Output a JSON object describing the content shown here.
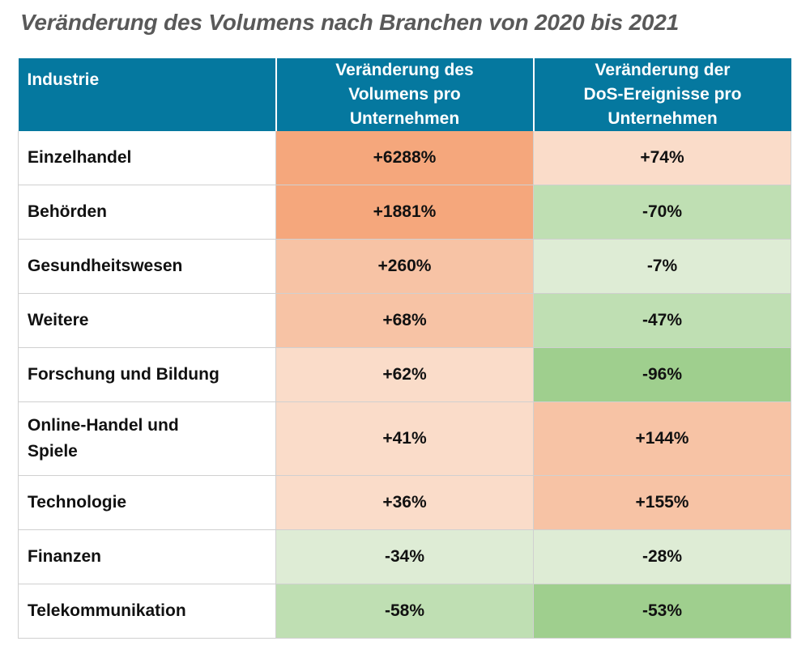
{
  "title": "Veränderung des Volumens nach Branchen von 2020 bis 2021",
  "header": {
    "col1": "Industrie",
    "col2_line1": "Veränderung des",
    "col2_line2": "Volumens pro",
    "col2_line3": "Unternehmen",
    "col3_line1": "Veränderung der",
    "col3_line2": "DoS-Ereignisse pro",
    "col3_line3": "Unternehmen"
  },
  "header_color": "#05789f",
  "colors": {
    "strong_orange": "#f5a77c",
    "medium_orange": "#f7c3a5",
    "light_orange": "#fadcc9",
    "light_green": "#deecd5",
    "medium_green": "#bfdfb3",
    "strong_green": "#9fcf8e"
  },
  "chart_data": {
    "type": "table",
    "title": "Veränderung des Volumens nach Branchen von 2020 bis 2021",
    "columns": [
      "Industrie",
      "Veränderung des Volumens pro Unternehmen",
      "Veränderung der DoS-Ereignisse pro Unternehmen"
    ],
    "rows": [
      {
        "industry": "Einzelhandel",
        "volume": "+6288%",
        "dos": "+74%",
        "volume_color": "#f5a77c",
        "dos_color": "#fadcc9"
      },
      {
        "industry": "Behörden",
        "volume": "+1881%",
        "dos": "-70%",
        "volume_color": "#f5a77c",
        "dos_color": "#bfdfb3"
      },
      {
        "industry": "Gesundheitswesen",
        "volume": "+260%",
        "dos": "-7%",
        "volume_color": "#f7c3a5",
        "dos_color": "#deecd5"
      },
      {
        "industry": "Weitere",
        "volume": "+68%",
        "dos": "-47%",
        "volume_color": "#f7c3a5",
        "dos_color": "#bfdfb3"
      },
      {
        "industry": "Forschung und Bildung",
        "volume": "+62%",
        "dos": "-96%",
        "volume_color": "#fadcc9",
        "dos_color": "#9fcf8e"
      },
      {
        "industry_line1": "Online-Handel und",
        "industry_line2": "Spiele",
        "volume": "+41%",
        "dos": "+144%",
        "volume_color": "#fadcc9",
        "dos_color": "#f7c3a5"
      },
      {
        "industry": "Technologie",
        "volume": "+36%",
        "dos": "+155%",
        "volume_color": "#fadcc9",
        "dos_color": "#f7c3a5"
      },
      {
        "industry": "Finanzen",
        "volume": "-34%",
        "dos": "-28%",
        "volume_color": "#deecd5",
        "dos_color": "#deecd5"
      },
      {
        "industry": "Telekommunikation",
        "volume": "-58%",
        "dos": "-53%",
        "volume_color": "#bfdfb3",
        "dos_color": "#9fcf8e"
      }
    ]
  }
}
